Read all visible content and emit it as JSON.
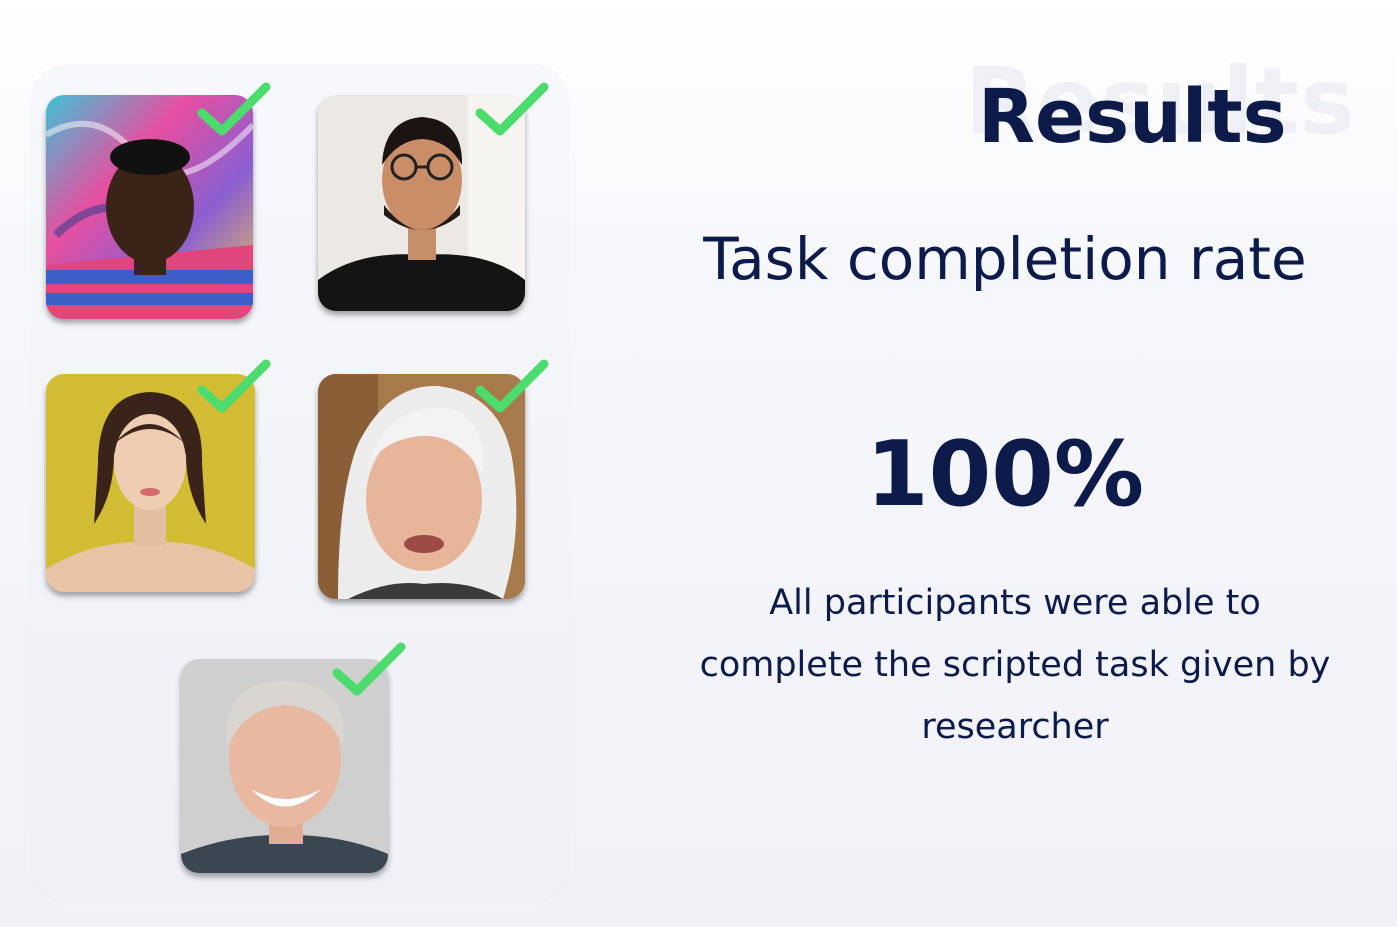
{
  "background_word": "Results",
  "title": "Results",
  "metric": {
    "label": "Task completion rate",
    "value": "100%",
    "description": "All participants were able to complete the scripted task given by researcher"
  },
  "participants": [
    {
      "avatar": "participant-1-photo",
      "completed": true
    },
    {
      "avatar": "participant-2-photo",
      "completed": true
    },
    {
      "avatar": "participant-3-photo",
      "completed": true
    },
    {
      "avatar": "participant-4-photo",
      "completed": true
    },
    {
      "avatar": "participant-5-photo",
      "completed": true
    }
  ],
  "colors": {
    "heading": "#0d1b4b",
    "check": "#4cdc6e",
    "watermark": "#eef0f5"
  }
}
